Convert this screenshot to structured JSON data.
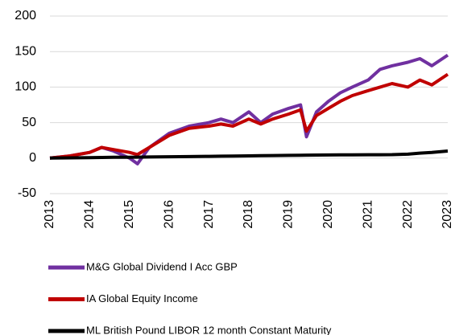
{
  "chart_data": {
    "type": "line",
    "x": [
      2013,
      2013.5,
      2014,
      2014.3,
      2014.6,
      2015,
      2015.2,
      2015.5,
      2016,
      2016.5,
      2017,
      2017.3,
      2017.6,
      2018,
      2018.3,
      2018.6,
      2019,
      2019.3,
      2019.45,
      2019.7,
      2020,
      2020.3,
      2020.6,
      2021,
      2021.3,
      2021.6,
      2022,
      2022.3,
      2022.6,
      2023
    ],
    "series": [
      {
        "name": "M&G Global Dividend I Acc GBP",
        "color": "#7030a0",
        "values": [
          0,
          3,
          8,
          15,
          10,
          0,
          -8,
          15,
          35,
          45,
          50,
          55,
          50,
          65,
          50,
          62,
          70,
          75,
          30,
          65,
          80,
          92,
          100,
          110,
          125,
          130,
          135,
          140,
          130,
          145
        ]
      },
      {
        "name": "IA Global Equity Income",
        "color": "#c00000",
        "values": [
          0,
          3,
          8,
          15,
          12,
          8,
          5,
          15,
          32,
          42,
          45,
          48,
          45,
          55,
          48,
          55,
          62,
          68,
          38,
          60,
          70,
          80,
          88,
          95,
          100,
          105,
          100,
          110,
          103,
          118
        ]
      },
      {
        "name": "ML British Pound LIBOR 12 month Constant Maturity",
        "color": "#000000",
        "values": [
          0,
          0.3,
          0.6,
          0.9,
          1.1,
          1.3,
          1.4,
          1.6,
          1.9,
          2.2,
          2.5,
          2.7,
          2.9,
          3.2,
          3.4,
          3.6,
          3.9,
          4.1,
          4.2,
          4.3,
          4.4,
          4.5,
          4.6,
          4.7,
          4.8,
          4.9,
          5.5,
          7,
          8,
          10
        ]
      }
    ],
    "xlim": [
      2013,
      2023
    ],
    "xticks": [
      2013,
      2014,
      2015,
      2016,
      2017,
      2018,
      2019,
      2020,
      2021,
      2022,
      2023
    ],
    "ylim": [
      -50,
      200
    ],
    "yticks": [
      -50,
      0,
      50,
      100,
      150,
      200
    ],
    "grid": true
  }
}
